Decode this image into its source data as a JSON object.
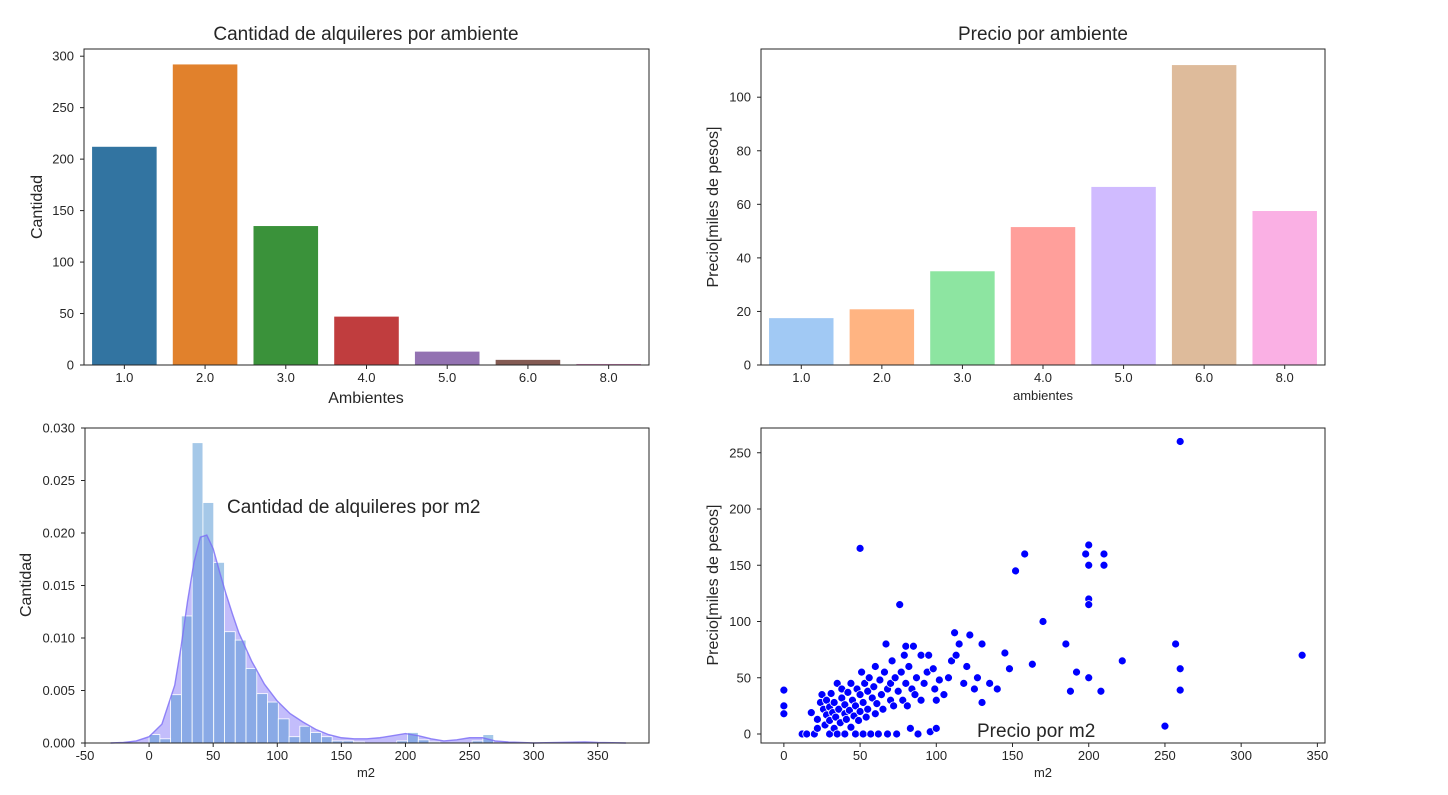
{
  "chart_data": [
    {
      "type": "bar",
      "title": "Cantidad de alquileres por ambiente",
      "xlabel": "Ambientes",
      "ylabel": "Cantidad",
      "categories": [
        "1.0",
        "2.0",
        "3.0",
        "4.0",
        "5.0",
        "6.0",
        "8.0"
      ],
      "values": [
        212,
        292,
        135,
        47,
        13,
        5,
        1
      ],
      "ylim": [
        0,
        307
      ],
      "yticks": [
        0,
        50,
        100,
        150,
        200,
        250,
        300
      ],
      "colors": [
        "#3274a1",
        "#e1812c",
        "#3a923a",
        "#c03d3e",
        "#9372b2",
        "#845b53",
        "#d684bd"
      ],
      "grid": false
    },
    {
      "type": "bar",
      "title": "Precio por ambiente",
      "xlabel": "ambientes",
      "ylabel": "Precio[miles de pesos]",
      "categories": [
        "1.0",
        "2.0",
        "3.0",
        "4.0",
        "5.0",
        "6.0",
        "8.0"
      ],
      "values": [
        17.5,
        20.8,
        35,
        51.5,
        66.5,
        112,
        57.5
      ],
      "ylim": [
        0,
        118
      ],
      "yticks": [
        0,
        20,
        40,
        60,
        80,
        100
      ],
      "colors": [
        "#a1c9f4",
        "#ffb482",
        "#8de5a1",
        "#ff9f9b",
        "#d0bbff",
        "#debb9b",
        "#fab0e4"
      ],
      "grid": false
    },
    {
      "type": "histogram",
      "title": "",
      "annotation": "Cantidad de alquileres por m2",
      "xlabel": "m2",
      "ylabel": "Cantidad",
      "xlim": [
        -50,
        390
      ],
      "ylim": [
        0,
        0.03
      ],
      "xticks": [
        -50,
        0,
        50,
        100,
        150,
        200,
        250,
        300,
        350
      ],
      "yticks": [
        "0.000",
        "0.005",
        "0.010",
        "0.015",
        "0.020",
        "0.025",
        "0.030"
      ],
      "bin_width": 8.4,
      "bins": [
        [
          0,
          0.0008
        ],
        [
          8.4,
          0.0004
        ],
        [
          16.8,
          0.0046
        ],
        [
          25.2,
          0.0121
        ],
        [
          33.6,
          0.0286
        ],
        [
          42,
          0.0229
        ],
        [
          50.4,
          0.0172
        ],
        [
          58.8,
          0.0106
        ],
        [
          67.2,
          0.0098
        ],
        [
          75.6,
          0.0071
        ],
        [
          84,
          0.0047
        ],
        [
          92.4,
          0.0039
        ],
        [
          100.8,
          0.0023
        ],
        [
          109.2,
          0.0006
        ],
        [
          117.6,
          0.0016
        ],
        [
          126,
          0.001
        ],
        [
          134.4,
          0.0006
        ],
        [
          142.8,
          0.0002
        ],
        [
          151.2,
          0.0002
        ],
        [
          159.6,
          0.0001
        ],
        [
          193.2,
          0.0002
        ],
        [
          201.6,
          0.001
        ],
        [
          210,
          0.0003
        ],
        [
          218.4,
          0.0001
        ],
        [
          252,
          0.0002
        ],
        [
          260.4,
          0.0008
        ],
        [
          336,
          0.0001
        ]
      ],
      "kde": {
        "x": [
          -30,
          -20,
          -10,
          0,
          10,
          20,
          25,
          30,
          35,
          40,
          45,
          50,
          55,
          60,
          65,
          70,
          80,
          90,
          100,
          110,
          120,
          130,
          140,
          150,
          160,
          170,
          180,
          190,
          200,
          210,
          220,
          230,
          240,
          250,
          260,
          270,
          280,
          300,
          320,
          340,
          350,
          372
        ],
        "y": [
          0,
          5e-05,
          0.0002,
          0.0006,
          0.0018,
          0.0055,
          0.0092,
          0.0135,
          0.0172,
          0.0196,
          0.0198,
          0.0185,
          0.0163,
          0.0142,
          0.0123,
          0.0105,
          0.0078,
          0.0056,
          0.004,
          0.0028,
          0.002,
          0.0013,
          0.0008,
          0.0005,
          0.0004,
          0.0004,
          0.0005,
          0.0007,
          0.0009,
          0.0007,
          0.0004,
          0.0002,
          0.0003,
          0.0005,
          0.0005,
          0.0002,
          0.0001,
          0,
          5e-05,
          0.0001,
          5e-05,
          0
        ]
      },
      "bar_color": "#5b9bd5",
      "kde_color": "#7b6cf6",
      "grid": false
    },
    {
      "type": "scatter",
      "title": "",
      "annotation": "Precio por m2",
      "xlabel": "m2",
      "ylabel": "Precio[miles de pesos]",
      "xlim": [
        -15,
        355
      ],
      "ylim": [
        -8,
        272
      ],
      "xticks": [
        0,
        50,
        100,
        150,
        200,
        250,
        300,
        350
      ],
      "yticks": [
        0,
        50,
        100,
        150,
        200,
        250
      ],
      "color": "#0000ff",
      "grid": false,
      "points": [
        [
          0,
          39
        ],
        [
          0,
          25
        ],
        [
          0,
          18
        ],
        [
          12,
          0
        ],
        [
          15,
          0
        ],
        [
          18,
          19
        ],
        [
          20,
          0
        ],
        [
          22,
          5
        ],
        [
          22,
          13
        ],
        [
          24,
          28
        ],
        [
          25,
          35
        ],
        [
          26,
          22
        ],
        [
          27,
          8
        ],
        [
          28,
          17
        ],
        [
          28,
          30
        ],
        [
          30,
          0
        ],
        [
          30,
          12
        ],
        [
          30,
          24
        ],
        [
          31,
          36
        ],
        [
          32,
          19
        ],
        [
          33,
          5
        ],
        [
          33,
          28
        ],
        [
          34,
          15
        ],
        [
          35,
          0
        ],
        [
          35,
          45
        ],
        [
          36,
          22
        ],
        [
          37,
          10
        ],
        [
          38,
          32
        ],
        [
          38,
          40
        ],
        [
          40,
          0
        ],
        [
          40,
          18
        ],
        [
          40,
          26
        ],
        [
          41,
          13
        ],
        [
          42,
          37
        ],
        [
          43,
          21
        ],
        [
          44,
          6
        ],
        [
          44,
          45
        ],
        [
          45,
          30
        ],
        [
          46,
          16
        ],
        [
          47,
          0
        ],
        [
          47,
          25
        ],
        [
          48,
          40
        ],
        [
          49,
          12
        ],
        [
          50,
          35
        ],
        [
          50,
          20
        ],
        [
          50,
          165
        ],
        [
          51,
          55
        ],
        [
          52,
          0
        ],
        [
          52,
          28
        ],
        [
          53,
          45
        ],
        [
          54,
          15
        ],
        [
          55,
          38
        ],
        [
          55,
          22
        ],
        [
          56,
          50
        ],
        [
          57,
          0
        ],
        [
          58,
          32
        ],
        [
          59,
          42
        ],
        [
          60,
          18
        ],
        [
          60,
          60
        ],
        [
          61,
          27
        ],
        [
          62,
          0
        ],
        [
          63,
          48
        ],
        [
          64,
          35
        ],
        [
          65,
          22
        ],
        [
          66,
          55
        ],
        [
          67,
          80
        ],
        [
          68,
          40
        ],
        [
          68,
          0
        ],
        [
          70,
          30
        ],
        [
          70,
          45
        ],
        [
          71,
          65
        ],
        [
          72,
          25
        ],
        [
          73,
          50
        ],
        [
          74,
          0
        ],
        [
          75,
          38
        ],
        [
          76,
          115
        ],
        [
          77,
          55
        ],
        [
          78,
          30
        ],
        [
          79,
          70
        ],
        [
          80,
          78
        ],
        [
          80,
          45
        ],
        [
          81,
          25
        ],
        [
          82,
          60
        ],
        [
          83,
          5
        ],
        [
          84,
          40
        ],
        [
          85,
          78
        ],
        [
          86,
          35
        ],
        [
          87,
          50
        ],
        [
          88,
          0
        ],
        [
          90,
          70
        ],
        [
          90,
          30
        ],
        [
          92,
          45
        ],
        [
          94,
          55
        ],
        [
          95,
          70
        ],
        [
          96,
          2
        ],
        [
          98,
          58
        ],
        [
          99,
          40
        ],
        [
          100,
          30
        ],
        [
          100,
          5
        ],
        [
          102,
          48
        ],
        [
          105,
          35
        ],
        [
          108,
          50
        ],
        [
          110,
          65
        ],
        [
          112,
          90
        ],
        [
          113,
          70
        ],
        [
          115,
          80
        ],
        [
          118,
          45
        ],
        [
          120,
          60
        ],
        [
          122,
          88
        ],
        [
          125,
          40
        ],
        [
          127,
          50
        ],
        [
          130,
          80
        ],
        [
          130,
          28
        ],
        [
          135,
          45
        ],
        [
          140,
          40
        ],
        [
          145,
          72
        ],
        [
          148,
          58
        ],
        [
          152,
          145
        ],
        [
          158,
          160
        ],
        [
          163,
          62
        ],
        [
          170,
          100
        ],
        [
          185,
          80
        ],
        [
          188,
          38
        ],
        [
          192,
          55
        ],
        [
          198,
          160
        ],
        [
          200,
          168
        ],
        [
          200,
          150
        ],
        [
          200,
          120
        ],
        [
          200,
          115
        ],
        [
          200,
          50
        ],
        [
          208,
          38
        ],
        [
          210,
          160
        ],
        [
          210,
          150
        ],
        [
          222,
          65
        ],
        [
          250,
          7
        ],
        [
          257,
          80
        ],
        [
          260,
          260
        ],
        [
          260,
          58
        ],
        [
          260,
          39
        ],
        [
          340,
          70
        ]
      ]
    }
  ]
}
